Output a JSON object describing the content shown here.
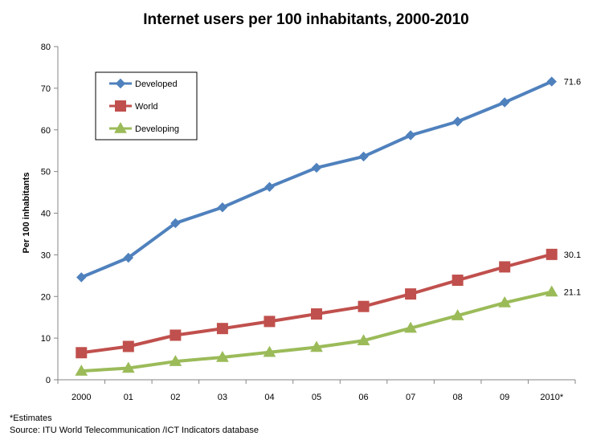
{
  "chart_data": {
    "type": "line",
    "title": "Internet users per 100 inhabitants,  2000-2010",
    "ylabel": "Per 100 inhabitants",
    "xlabel": "",
    "categories": [
      "2000",
      "01",
      "02",
      "03",
      "04",
      "05",
      "06",
      "07",
      "08",
      "09",
      "2010*"
    ],
    "ylim": [
      0,
      80
    ],
    "yticks": [
      "0",
      "10",
      "20",
      "30",
      "40",
      "50",
      "60",
      "70",
      "80"
    ],
    "grid": false,
    "legend": "top-left",
    "series": [
      {
        "name": "Developed",
        "color": "#4F81BD",
        "marker": "diamond",
        "values": [
          24.6,
          29.3,
          37.6,
          41.4,
          46.3,
          50.9,
          53.6,
          58.7,
          62.0,
          66.6,
          71.6
        ],
        "end_label": "71.6"
      },
      {
        "name": "World",
        "color": "#C0504D",
        "marker": "square",
        "values": [
          6.5,
          8.0,
          10.7,
          12.3,
          14.0,
          15.8,
          17.6,
          20.6,
          23.9,
          27.1,
          30.1
        ],
        "end_label": "30.1"
      },
      {
        "name": "Developing",
        "color": "#9BBB59",
        "marker": "triangle",
        "values": [
          2.1,
          2.8,
          4.4,
          5.4,
          6.6,
          7.8,
          9.4,
          12.4,
          15.4,
          18.5,
          21.1
        ],
        "end_label": "21.1"
      }
    ]
  },
  "footnotes": {
    "estimates": "*Estimates",
    "source": "Source:  ITU World Telecommunication /ICT Indicators database"
  }
}
